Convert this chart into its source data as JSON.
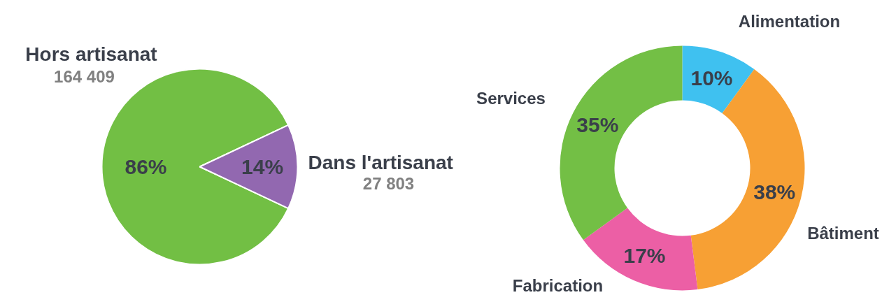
{
  "chart_data": [
    {
      "type": "pie",
      "categories": [
        "Hors artisanat",
        "Dans l'artisanat"
      ],
      "values": [
        86,
        14
      ],
      "colors": [
        "#72bf44",
        "#9268b0"
      ],
      "value_labels": [
        "86%",
        "14%"
      ],
      "annotations": [
        "164 409",
        "27 803"
      ]
    },
    {
      "type": "donut",
      "categories": [
        "Alimentation",
        "Bâtiment",
        "Fabrication",
        "Services"
      ],
      "values": [
        10,
        38,
        17,
        35
      ],
      "colors": [
        "#3fc1f0",
        "#f7a034",
        "#ec5fa5",
        "#73bf45"
      ],
      "value_labels": [
        "10%",
        "38%",
        "17%",
        "35%"
      ]
    }
  ]
}
